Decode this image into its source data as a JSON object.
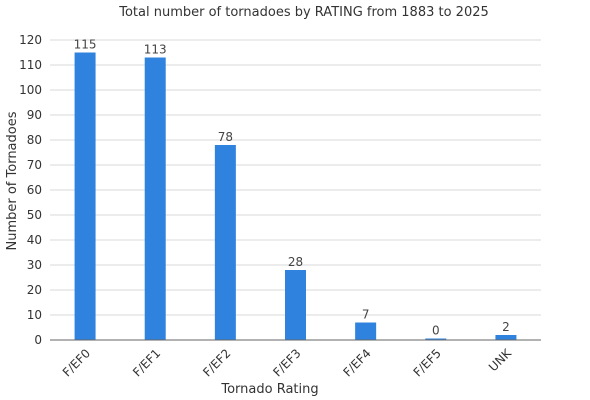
{
  "chart_data": {
    "type": "bar",
    "title": "Total number of tornadoes by RATING from 1883 to 2025",
    "xlabel": "Tornado Rating",
    "ylabel": "Number of Tornadoes",
    "categories": [
      "F/EF0",
      "F/EF1",
      "F/EF2",
      "F/EF3",
      "F/EF4",
      "F/EF5",
      "UNK"
    ],
    "values": [
      115,
      113,
      78,
      28,
      7,
      0,
      2
    ],
    "ylim": [
      0,
      120
    ],
    "yticks": [
      0,
      10,
      20,
      30,
      40,
      50,
      60,
      70,
      80,
      90,
      100,
      110,
      120
    ],
    "grid": true,
    "bar_color": "#2f83de",
    "data_labels": true
  }
}
